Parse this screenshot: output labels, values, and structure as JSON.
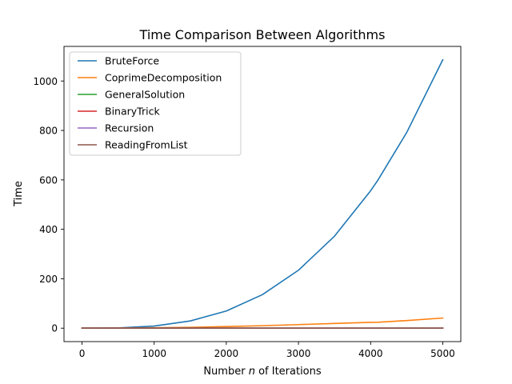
{
  "chart_data": {
    "type": "line",
    "title": "Time Comparison Between Algorithms",
    "xlabel_parts": [
      "Number ",
      "n",
      " of Iterations"
    ],
    "ylabel": "Time",
    "xlim": [
      -250,
      5250
    ],
    "ylim": [
      -54.3,
      1140
    ],
    "grid": false,
    "legend_placement": "top-left",
    "x_ticks": [
      0,
      1000,
      2000,
      3000,
      4000,
      5000
    ],
    "x_tick_labels": [
      "0",
      "1000",
      "2000",
      "3000",
      "4000",
      "5000"
    ],
    "y_ticks": [
      0,
      200,
      400,
      600,
      800,
      1000
    ],
    "y_tick_labels": [
      "0",
      "200",
      "400",
      "600",
      "800",
      "1000"
    ],
    "x": [
      0,
      500,
      1000,
      1500,
      2000,
      2500,
      3000,
      3500,
      4000,
      4100,
      4500,
      5000
    ],
    "series": [
      {
        "name": "BruteForce",
        "color": "#1f77b4",
        "values": [
          0,
          1.1,
          8.7,
          29.3,
          69.5,
          135.7,
          234.5,
          372.4,
          555.9,
          598.6,
          791.5,
          1085.8
        ]
      },
      {
        "name": "CoprimeDecomposition",
        "color": "#ff7f0e",
        "values": [
          0,
          0.5,
          1.8,
          3.5,
          6.5,
          10,
          14.5,
          19,
          23.5,
          24,
          31,
          41
        ]
      },
      {
        "name": "GeneralSolution",
        "color": "#2ca02c",
        "values": [
          0,
          0,
          0,
          0,
          0,
          0,
          0,
          0,
          0,
          0,
          0,
          0
        ]
      },
      {
        "name": "BinaryTrick",
        "color": "#d62728",
        "values": [
          0,
          0,
          0,
          0,
          0,
          0,
          0,
          0,
          0,
          0,
          0,
          0
        ]
      },
      {
        "name": "Recursion",
        "color": "#9467bd",
        "values": [
          0,
          0,
          0,
          0,
          0,
          0,
          0,
          0,
          0,
          0,
          0,
          0
        ]
      },
      {
        "name": "ReadingFromList",
        "color": "#8c564b",
        "values": [
          0,
          0,
          0,
          0,
          0,
          0,
          0,
          0,
          0,
          0,
          0,
          0
        ]
      }
    ]
  }
}
